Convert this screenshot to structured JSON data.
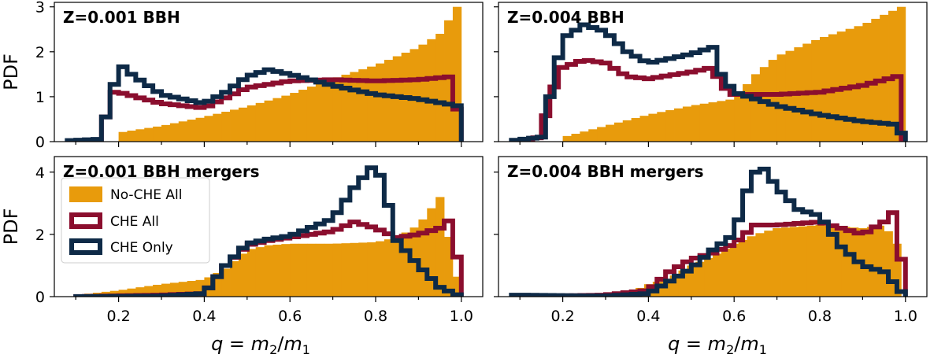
{
  "colors": {
    "nocheall": "#E89B0C",
    "cheall": "#8B0E2E",
    "cheonly": "#0E2A47"
  },
  "legend": [
    {
      "key": "nocheall",
      "label": "No-CHE All"
    },
    {
      "key": "cheall",
      "label": "CHE All"
    },
    {
      "key": "cheonly",
      "label": "CHE Only"
    }
  ],
  "xlabel_parts": {
    "q": "q",
    "eq": " = ",
    "m2": "m",
    "s2": "2",
    "slash": "/",
    "m1": "m",
    "s1": "1"
  },
  "chart_data": [
    {
      "type": "histogram",
      "title": "Z=0.001 BBH",
      "ylabel": "PDF",
      "xlim": [
        0.05,
        1.05
      ],
      "ylim": [
        0,
        3.1
      ],
      "xticks": [
        0.2,
        0.4,
        0.6,
        0.8,
        1.0
      ],
      "xticklabels": [
        "",
        "",
        "",
        "",
        ""
      ],
      "yticks": [
        0,
        1,
        2,
        3
      ],
      "yticklabels": [
        "0",
        "1",
        "2",
        "3"
      ],
      "series": [
        {
          "key": "nocheall",
          "style": "fill",
          "x": [
            0.2,
            0.3,
            0.4,
            0.5,
            0.6,
            0.7,
            0.8,
            0.9,
            0.95,
            0.99,
            1.0
          ],
          "y": [
            0.2,
            0.35,
            0.55,
            0.78,
            1.05,
            1.4,
            1.7,
            2.1,
            2.4,
            3.0,
            0.0
          ]
        },
        {
          "key": "cheall",
          "style": "step",
          "x": [
            0.16,
            0.18,
            0.2,
            0.3,
            0.4,
            0.5,
            0.6,
            0.7,
            0.8,
            0.9,
            0.98,
            1.0
          ],
          "y": [
            0.0,
            1.1,
            1.1,
            0.85,
            0.75,
            1.2,
            1.35,
            1.38,
            1.35,
            1.38,
            1.45,
            0.0
          ]
        },
        {
          "key": "cheonly",
          "style": "step",
          "x": [
            0.08,
            0.15,
            0.18,
            0.2,
            0.23,
            0.3,
            0.4,
            0.45,
            0.5,
            0.55,
            0.6,
            0.7,
            0.8,
            0.9,
            0.99,
            1.0
          ],
          "y": [
            0.02,
            0.05,
            0.8,
            1.75,
            1.5,
            1.05,
            0.85,
            1.1,
            1.45,
            1.6,
            1.5,
            1.25,
            1.05,
            0.95,
            0.8,
            0.0
          ]
        }
      ]
    },
    {
      "type": "histogram",
      "title": "Z=0.004 BBH",
      "ylabel": "",
      "xlim": [
        0.05,
        1.05
      ],
      "ylim": [
        0,
        3.1
      ],
      "xticks": [
        0.2,
        0.4,
        0.6,
        0.8,
        1.0
      ],
      "xticklabels": [
        "",
        "",
        "",
        "",
        ""
      ],
      "yticks": [
        0,
        1,
        2,
        3
      ],
      "yticklabels": [
        "",
        "",
        "",
        ""
      ],
      "series": [
        {
          "key": "nocheall",
          "style": "fill",
          "x": [
            0.2,
            0.3,
            0.4,
            0.5,
            0.6,
            0.65,
            0.7,
            0.8,
            0.9,
            0.99,
            1.0
          ],
          "y": [
            0.1,
            0.35,
            0.6,
            0.8,
            0.95,
            1.5,
            1.9,
            2.3,
            2.6,
            3.0,
            0.0
          ]
        },
        {
          "key": "cheall",
          "style": "step",
          "x": [
            0.13,
            0.15,
            0.17,
            0.2,
            0.25,
            0.3,
            0.35,
            0.4,
            0.5,
            0.55,
            0.57,
            0.6,
            0.7,
            0.8,
            0.9,
            0.98,
            1.0
          ],
          "y": [
            0.02,
            0.15,
            1.0,
            1.65,
            1.82,
            1.75,
            1.45,
            1.4,
            1.55,
            1.65,
            1.25,
            1.05,
            1.05,
            1.1,
            1.25,
            1.45,
            0.0
          ]
        },
        {
          "key": "cheonly",
          "style": "step",
          "x": [
            0.08,
            0.15,
            0.17,
            0.2,
            0.25,
            0.3,
            0.35,
            0.4,
            0.5,
            0.55,
            0.57,
            0.6,
            0.7,
            0.8,
            0.9,
            0.98,
            1.0
          ],
          "y": [
            0.02,
            0.1,
            1.0,
            2.3,
            2.6,
            2.45,
            2.0,
            1.75,
            1.95,
            2.1,
            1.5,
            1.1,
            0.8,
            0.6,
            0.45,
            0.38,
            0.0
          ]
        }
      ]
    },
    {
      "type": "histogram",
      "title": "Z=0.001 BBH mergers",
      "ylabel": "PDF",
      "xlim": [
        0.05,
        1.05
      ],
      "ylim": [
        0,
        4.5
      ],
      "xticks": [
        0.2,
        0.4,
        0.6,
        0.8,
        1.0
      ],
      "xticklabels": [
        "0.2",
        "0.4",
        "0.6",
        "0.8",
        "1.0"
      ],
      "yticks": [
        0,
        2,
        4
      ],
      "yticklabels": [
        "0",
        "2",
        "4"
      ],
      "series": [
        {
          "key": "nocheall",
          "style": "fill",
          "x": [
            0.1,
            0.2,
            0.3,
            0.4,
            0.45,
            0.5,
            0.55,
            0.6,
            0.7,
            0.8,
            0.85,
            0.9,
            0.95,
            1.0
          ],
          "y": [
            0.05,
            0.2,
            0.4,
            0.55,
            0.9,
            1.5,
            1.65,
            1.7,
            1.7,
            1.75,
            1.9,
            2.3,
            3.2,
            0.0
          ]
        },
        {
          "key": "cheall",
          "style": "step",
          "x": [
            0.1,
            0.3,
            0.4,
            0.45,
            0.5,
            0.55,
            0.6,
            0.7,
            0.75,
            0.8,
            0.85,
            0.9,
            0.95,
            0.98,
            1.0
          ],
          "y": [
            0.0,
            0.05,
            0.1,
            1.0,
            1.65,
            1.8,
            1.9,
            2.1,
            2.4,
            2.2,
            1.9,
            2.0,
            2.2,
            2.55,
            0.0
          ]
        },
        {
          "key": "cheonly",
          "style": "step",
          "x": [
            0.1,
            0.3,
            0.4,
            0.45,
            0.5,
            0.55,
            0.6,
            0.7,
            0.75,
            0.8,
            0.82,
            0.85,
            0.9,
            0.95,
            1.0
          ],
          "y": [
            0.0,
            0.02,
            0.1,
            1.0,
            1.7,
            1.85,
            1.95,
            2.5,
            3.5,
            4.3,
            3.5,
            1.8,
            1.0,
            0.3,
            0.0
          ]
        }
      ]
    },
    {
      "type": "histogram",
      "title": "Z=0.004 BBH mergers",
      "ylabel": "",
      "xlim": [
        0.05,
        1.05
      ],
      "ylim": [
        0,
        4.5
      ],
      "xticks": [
        0.2,
        0.4,
        0.6,
        0.8,
        1.0
      ],
      "xticklabels": [
        "0.2",
        "0.4",
        "0.6",
        "0.8",
        "1.0"
      ],
      "yticks": [
        0,
        2,
        4
      ],
      "yticklabels": [
        "",
        "",
        ""
      ],
      "series": [
        {
          "key": "nocheall",
          "style": "fill",
          "x": [
            0.35,
            0.4,
            0.45,
            0.5,
            0.55,
            0.6,
            0.65,
            0.7,
            0.8,
            0.9,
            0.95,
            0.99,
            1.0
          ],
          "y": [
            0.1,
            0.4,
            0.6,
            1.0,
            1.3,
            1.7,
            2.0,
            2.2,
            2.3,
            2.2,
            2.3,
            1.5,
            0.0
          ]
        },
        {
          "key": "cheall",
          "style": "step",
          "x": [
            0.1,
            0.3,
            0.4,
            0.45,
            0.5,
            0.55,
            0.6,
            0.65,
            0.7,
            0.8,
            0.85,
            0.9,
            0.95,
            0.97,
            0.99,
            1.0
          ],
          "y": [
            0.0,
            0.05,
            0.2,
            0.8,
            1.2,
            1.4,
            1.7,
            2.3,
            2.3,
            2.4,
            2.2,
            2.0,
            2.4,
            2.7,
            1.2,
            0.0
          ]
        },
        {
          "key": "cheonly",
          "style": "step",
          "x": [
            0.08,
            0.3,
            0.4,
            0.45,
            0.5,
            0.55,
            0.6,
            0.63,
            0.66,
            0.7,
            0.75,
            0.8,
            0.85,
            0.9,
            0.95,
            1.0
          ],
          "y": [
            0.05,
            0.02,
            0.1,
            0.5,
            0.9,
            1.5,
            2.0,
            3.4,
            4.3,
            3.5,
            2.8,
            2.6,
            1.6,
            1.0,
            0.8,
            0.0
          ]
        }
      ]
    }
  ]
}
